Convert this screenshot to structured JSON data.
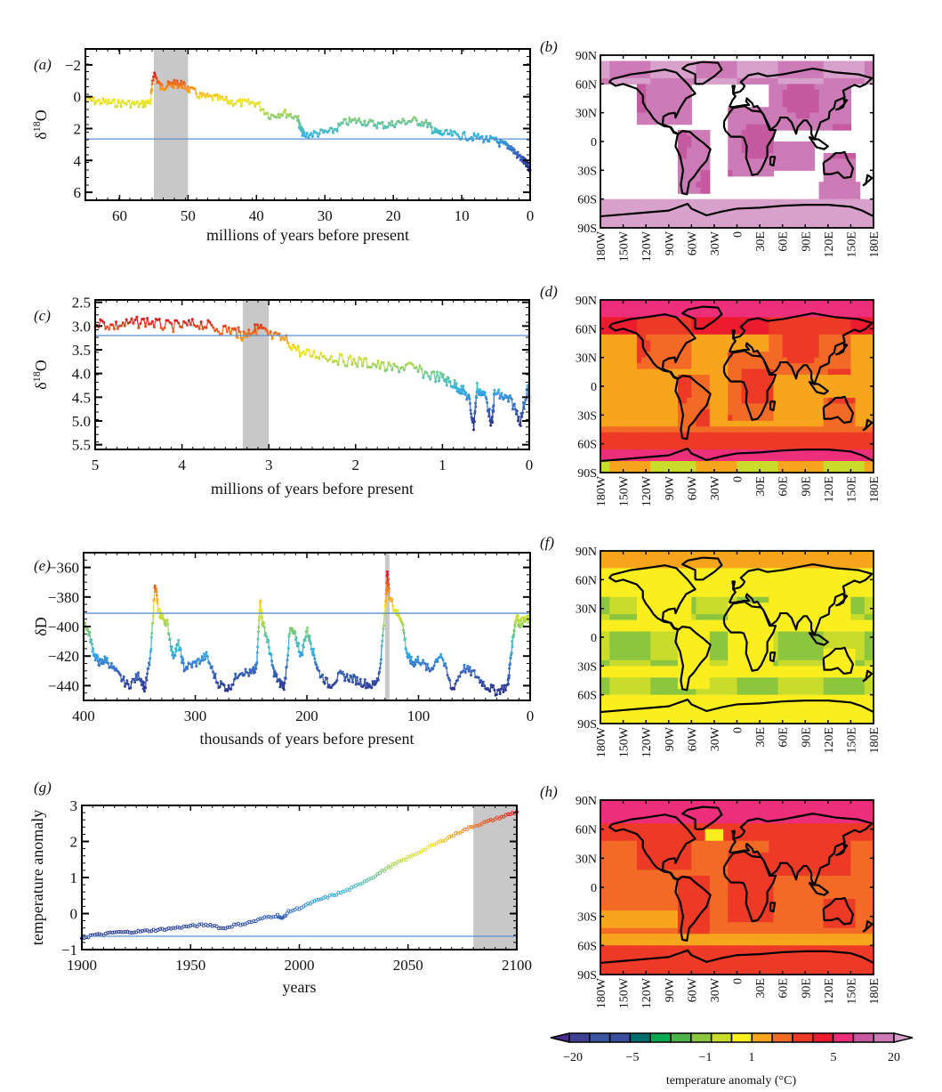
{
  "figure": {
    "reference_line_color": "#5b8fd4",
    "highlight_color": "#c8c8c8",
    "colorbar": {
      "label": "temperature anomaly (°C)",
      "tick_labels": [
        "−20",
        "−5",
        "−1",
        "1",
        "5",
        "20"
      ],
      "colors": [
        "#4b2d8f",
        "#3f3f96",
        "#3b55a2",
        "#3a4ea0",
        "#006d6f",
        "#0aa84f",
        "#4cb34a",
        "#8cc63f",
        "#c9db2b",
        "#fbee1f",
        "#f7a51c",
        "#f26a25",
        "#ec3a26",
        "#ec1c2e",
        "#ec2e7b",
        "#c55aa0",
        "#cc7bb6",
        "#d7a1cc"
      ]
    }
  },
  "chart_data": [
    {
      "panel": "(a)",
      "type": "line",
      "xlabel": "millions of years before present",
      "ylabel": "δ18O",
      "xlim": [
        65,
        0
      ],
      "ylim": [
        6.5,
        -3
      ],
      "y_inverted": true,
      "xticks": [
        60,
        50,
        40,
        30,
        20,
        10,
        0
      ],
      "yticks": [
        -2,
        0,
        2,
        4,
        6
      ],
      "reference_line": 2.65,
      "highlight": [
        55,
        50
      ],
      "x": [
        65,
        63,
        61,
        59,
        57,
        55.5,
        55,
        54,
        53,
        52,
        51,
        50,
        48,
        46,
        44,
        42,
        40,
        38,
        36,
        34,
        33.5,
        33,
        31,
        29,
        27,
        25,
        23,
        21,
        19,
        17,
        15,
        14,
        13,
        11,
        9,
        7,
        5,
        4,
        3,
        2,
        1,
        0.5,
        0
      ],
      "y": [
        0.2,
        0.3,
        0.4,
        0.4,
        0.5,
        0.3,
        -1.5,
        -0.6,
        -0.7,
        -0.8,
        -0.8,
        -0.5,
        0,
        0.1,
        0.3,
        0.4,
        0.4,
        1.2,
        1.0,
        1.3,
        2.1,
        2.4,
        2.3,
        2.2,
        1.6,
        1.5,
        1.7,
        1.8,
        1.6,
        1.5,
        1.7,
        2.2,
        2.3,
        2.4,
        2.5,
        2.6,
        2.8,
        3.0,
        3.1,
        3.6,
        4.0,
        4.3,
        4.6
      ]
    },
    {
      "panel": "(c)",
      "type": "line",
      "xlabel": "millions of years before present",
      "ylabel": "δ18O",
      "xlim": [
        5,
        0
      ],
      "ylim": [
        5.6,
        2.45
      ],
      "y_inverted": true,
      "xticks": [
        5,
        4,
        3,
        2,
        1,
        0
      ],
      "yticks": [
        2.5,
        3.0,
        3.5,
        4.0,
        4.5,
        5.0,
        5.5
      ],
      "reference_line": 3.2,
      "highlight": [
        3.3,
        3.0
      ],
      "x": [
        5,
        4.8,
        4.6,
        4.4,
        4.2,
        4.0,
        3.8,
        3.6,
        3.4,
        3.3,
        3.2,
        3.1,
        3.0,
        2.8,
        2.6,
        2.4,
        2.2,
        2.0,
        1.8,
        1.6,
        1.4,
        1.2,
        1.0,
        0.9,
        0.8,
        0.7,
        0.64,
        0.6,
        0.5,
        0.43,
        0.4,
        0.3,
        0.2,
        0.1,
        0.02,
        0
      ],
      "y": [
        2.9,
        3.0,
        2.95,
        2.9,
        3.0,
        3.0,
        2.95,
        3.05,
        3.1,
        3.2,
        3.1,
        3.05,
        3.2,
        3.3,
        3.6,
        3.6,
        3.7,
        3.75,
        3.8,
        3.9,
        3.85,
        4.0,
        4.1,
        4.2,
        4.3,
        4.5,
        5.1,
        4.3,
        4.5,
        5.1,
        4.4,
        4.5,
        4.6,
        5.0,
        4.3,
        4.5
      ]
    },
    {
      "panel": "(e)",
      "type": "line",
      "xlabel": "thousands of years before present",
      "ylabel": "δD",
      "xlim": [
        400,
        0
      ],
      "ylim": [
        -450,
        -350
      ],
      "xticks": [
        400,
        300,
        200,
        100,
        0
      ],
      "yticks": [
        -360,
        -380,
        -400,
        -420,
        -440
      ],
      "reference_line": -391,
      "highlight": [
        130,
        126
      ],
      "x": [
        400,
        395,
        390,
        385,
        380,
        370,
        360,
        350,
        345,
        340,
        336,
        333,
        330,
        325,
        320,
        315,
        310,
        300,
        290,
        280,
        270,
        260,
        250,
        245,
        242,
        240,
        235,
        230,
        225,
        220,
        215,
        210,
        205,
        200,
        195,
        190,
        180,
        170,
        160,
        150,
        140,
        135,
        130,
        128,
        126,
        120,
        115,
        110,
        105,
        100,
        90,
        80,
        70,
        60,
        50,
        40,
        30,
        20,
        18,
        15,
        12,
        10,
        5,
        0
      ],
      "y": [
        -395,
        -405,
        -420,
        -425,
        -422,
        -432,
        -440,
        -433,
        -442,
        -420,
        -370,
        -390,
        -393,
        -398,
        -420,
        -412,
        -428,
        -425,
        -420,
        -438,
        -442,
        -430,
        -432,
        -428,
        -382,
        -396,
        -410,
        -430,
        -438,
        -440,
        -402,
        -407,
        -420,
        -402,
        -415,
        -430,
        -440,
        -433,
        -435,
        -438,
        -440,
        -432,
        -390,
        -365,
        -380,
        -390,
        -395,
        -420,
        -425,
        -422,
        -430,
        -418,
        -443,
        -428,
        -432,
        -440,
        -444,
        -440,
        -425,
        -405,
        -392,
        -398,
        -396,
        -395
      ]
    },
    {
      "panel": "(g)",
      "type": "scatter",
      "xlabel": "years",
      "ylabel": "temperature anomaly",
      "xlim": [
        1900,
        2100
      ],
      "ylim": [
        -1,
        3
      ],
      "xticks": [
        1900,
        1950,
        2000,
        2050,
        2100
      ],
      "yticks": [
        -1,
        0,
        1,
        2,
        3
      ],
      "reference_line": -0.63,
      "highlight": [
        2080,
        2100
      ],
      "x": [
        1900,
        1905,
        1910,
        1915,
        1920,
        1925,
        1930,
        1935,
        1940,
        1945,
        1950,
        1955,
        1960,
        1965,
        1970,
        1975,
        1980,
        1985,
        1990,
        1992,
        1995,
        2000,
        2005,
        2010,
        2015,
        2020,
        2025,
        2030,
        2035,
        2040,
        2045,
        2050,
        2055,
        2060,
        2065,
        2070,
        2075,
        2080,
        2085,
        2090,
        2095,
        2100
      ],
      "y": [
        -0.68,
        -0.6,
        -0.58,
        -0.52,
        -0.52,
        -0.5,
        -0.48,
        -0.45,
        -0.42,
        -0.38,
        -0.35,
        -0.32,
        -0.32,
        -0.42,
        -0.32,
        -0.28,
        -0.2,
        -0.1,
        -0.05,
        -0.15,
        0.05,
        0.15,
        0.28,
        0.4,
        0.5,
        0.6,
        0.72,
        0.9,
        1.05,
        1.25,
        1.4,
        1.55,
        1.7,
        1.85,
        2.0,
        2.15,
        2.3,
        2.42,
        2.52,
        2.62,
        2.72,
        2.82
      ]
    },
    {
      "panel": "(b)",
      "type": "heatmap",
      "description": "global map of temperature anomaly",
      "xticks": [
        "180W",
        "150W",
        "120W",
        "90W",
        "60W",
        "30W",
        "0",
        "30E",
        "60E",
        "90E",
        "120E",
        "150E",
        "180E"
      ],
      "yticks": [
        "90N",
        "60N",
        "30N",
        "0",
        "30S",
        "60S",
        "90S"
      ],
      "dominant_bins": [
        "5 to 10",
        "10 to 20",
        ">20"
      ]
    },
    {
      "panel": "(d)",
      "type": "heatmap",
      "description": "global map of temperature anomaly",
      "xticks": [
        "180W",
        "150W",
        "120W",
        "90W",
        "60W",
        "30W",
        "0",
        "30E",
        "60E",
        "90E",
        "120E",
        "150E",
        "180E"
      ],
      "yticks": [
        "90N",
        "60N",
        "30N",
        "0",
        "30S",
        "60S",
        "90S"
      ],
      "dominant_bins": [
        "1 to 2",
        "2 to 5",
        "5 to 10"
      ]
    },
    {
      "panel": "(f)",
      "type": "heatmap",
      "description": "global map of temperature anomaly",
      "xticks": [
        "180W",
        "150W",
        "120W",
        "90W",
        "60W",
        "30W",
        "0",
        "30E",
        "60E",
        "90E",
        "120E",
        "150E",
        "180E"
      ],
      "yticks": [
        "90N",
        "60N",
        "30N",
        "0",
        "30S",
        "60S",
        "90S"
      ],
      "dominant_bins": [
        "-1 to -0.5",
        "-0.5 to 1",
        "1 to 2"
      ]
    },
    {
      "panel": "(h)",
      "type": "heatmap",
      "description": "global map of temperature anomaly",
      "xticks": [
        "180W",
        "150W",
        "120W",
        "90W",
        "60W",
        "30W",
        "0",
        "30E",
        "60E",
        "90E",
        "120E",
        "150E",
        "180E"
      ],
      "yticks": [
        "90N",
        "60N",
        "30N",
        "0",
        "30S",
        "60S",
        "90S"
      ],
      "dominant_bins": [
        "1 to 2",
        "2 to 5",
        "5 to 10"
      ]
    }
  ]
}
